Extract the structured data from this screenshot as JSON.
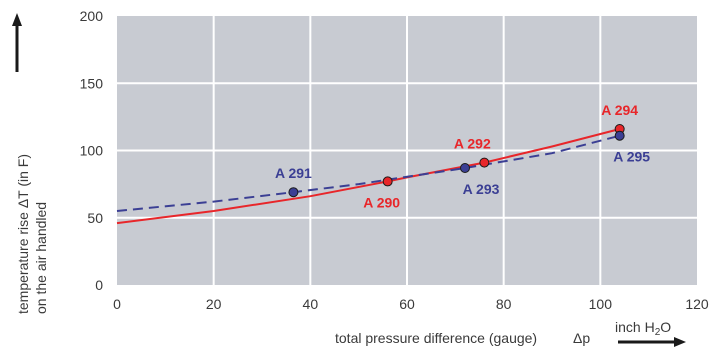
{
  "chart_data": {
    "type": "line",
    "title": "",
    "xlabel": "total pressure difference (gauge)",
    "xlabel_symbol": "Δp",
    "xunit": "inch H",
    "xunit_sub": "2",
    "xunit_end": "O",
    "ylabel_line1": "temperature rise ΔT    (in F)",
    "ylabel_line2": "on the air handled",
    "xlim": [
      0,
      120
    ],
    "ylim": [
      0,
      200
    ],
    "xticks": [
      0,
      20,
      40,
      60,
      80,
      100,
      120
    ],
    "yticks": [
      0,
      50,
      100,
      150,
      200
    ],
    "grid": true,
    "series": [
      {
        "style": "solid",
        "color": "#e8262a",
        "points": [
          [
            0,
            46
          ],
          [
            20,
            55
          ],
          [
            40,
            66
          ],
          [
            56,
            77
          ],
          [
            60,
            80
          ],
          [
            76,
            91
          ],
          [
            90,
            103
          ],
          [
            104,
            116
          ]
        ]
      },
      {
        "style": "dashed",
        "color": "#3b3f94",
        "points": [
          [
            0,
            55
          ],
          [
            20,
            62
          ],
          [
            36.5,
            69
          ],
          [
            50,
            75
          ],
          [
            72,
            87
          ],
          [
            90,
            98
          ],
          [
            104,
            111
          ]
        ]
      }
    ],
    "labeled_points": [
      {
        "label": "A 291",
        "x": 36.5,
        "y": 69,
        "series": 1
      },
      {
        "label": "A 290",
        "x": 56,
        "y": 77,
        "series": 0
      },
      {
        "label": "A 292",
        "x": 76,
        "y": 91,
        "series": 0
      },
      {
        "label": "A 293",
        "x": 72,
        "y": 87,
        "series": 1
      },
      {
        "label": "A 294",
        "x": 104,
        "y": 116,
        "series": 0
      },
      {
        "label": "A 295",
        "x": 104,
        "y": 111,
        "series": 1
      }
    ],
    "colors": {
      "plot_bg": "#c8cbd2",
      "grid": "#ffffff",
      "red": "#e8262a",
      "blue": "#3b3f94",
      "text": "#3a3a3a"
    }
  }
}
